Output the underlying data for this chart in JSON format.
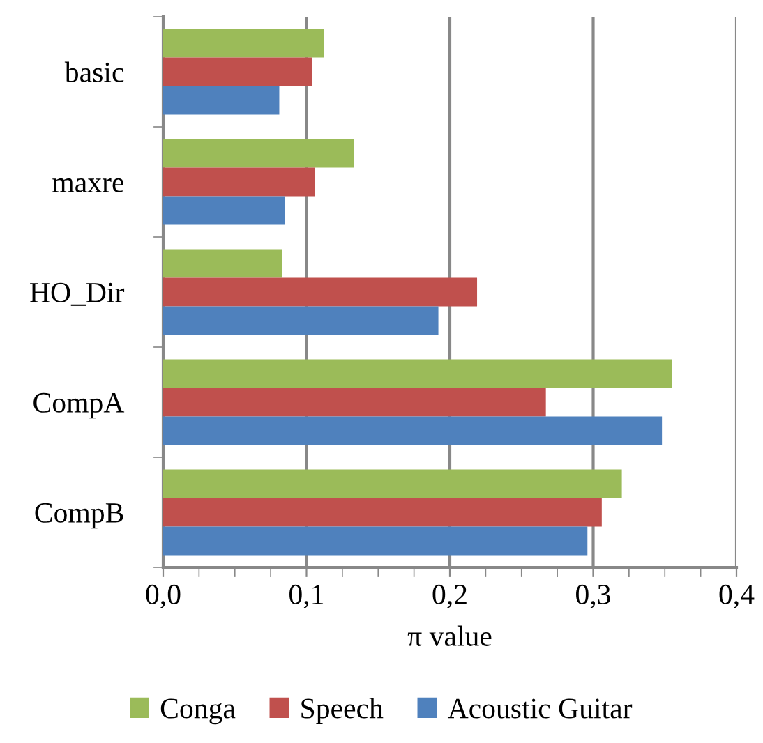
{
  "chart_data": {
    "type": "bar",
    "orientation": "horizontal",
    "xlabel": "π value",
    "categories": [
      "basic",
      "maxre",
      "HO_Dir",
      "CompA",
      "CompB"
    ],
    "series": [
      {
        "name": "Conga",
        "color": "#9bbb59",
        "values": [
          0.112,
          0.133,
          0.083,
          0.355,
          0.32
        ]
      },
      {
        "name": "Speech",
        "color": "#c0504d",
        "values": [
          0.104,
          0.106,
          0.219,
          0.267,
          0.306
        ]
      },
      {
        "name": "Acoustic Guitar",
        "color": "#4f81bd",
        "values": [
          0.081,
          0.085,
          0.192,
          0.348,
          0.296
        ]
      }
    ],
    "xlim": [
      0,
      0.4
    ],
    "xticks": [
      {
        "value": 0,
        "label": "0,0"
      },
      {
        "value": 0.1,
        "label": "0,1"
      },
      {
        "value": 0.2,
        "label": "0,2"
      },
      {
        "value": 0.3,
        "label": "0,3"
      },
      {
        "value": 0.4,
        "label": "0,4"
      }
    ],
    "grid": "x",
    "legend": "bottom"
  }
}
